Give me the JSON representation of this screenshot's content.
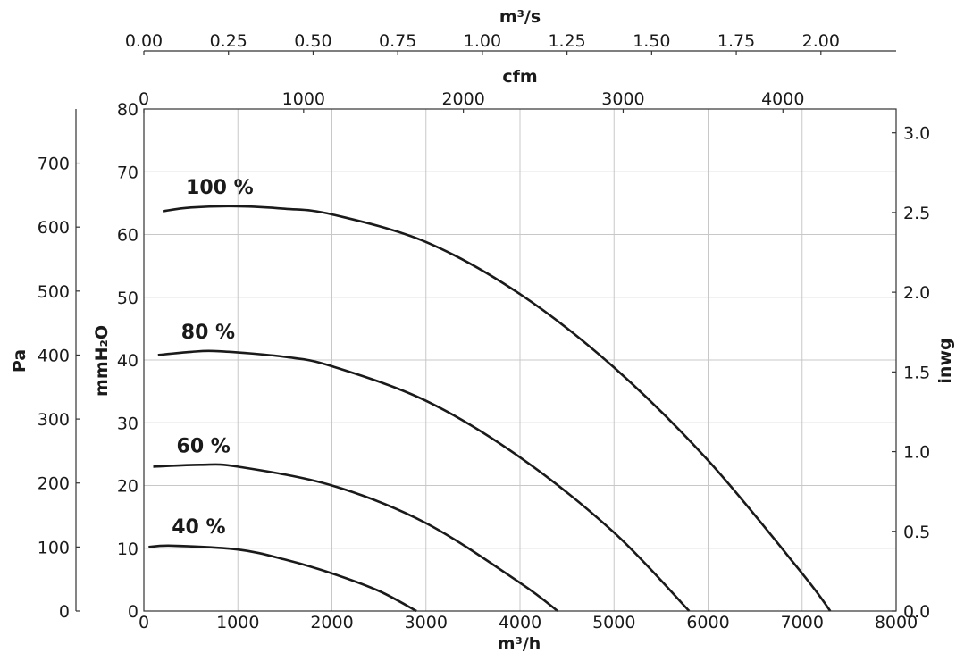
{
  "chart_data": {
    "type": "line",
    "x_axis_bottom": {
      "label": "m³/h",
      "range": [
        0,
        8000
      ],
      "ticks": [
        "0",
        "1000",
        "2000",
        "3000",
        "4000",
        "5000",
        "6000",
        "7000",
        "8000"
      ]
    },
    "x_axis_top_cfm": {
      "label": "cfm",
      "ticks": [
        "0",
        "1000",
        "2000",
        "3000",
        "4000"
      ]
    },
    "x_axis_top_m3s": {
      "label": "m³/s",
      "ticks": [
        "0.00",
        "0.25",
        "0.50",
        "0.75",
        "1.00",
        "1.25",
        "1.50",
        "1.75",
        "2.00"
      ]
    },
    "y_axis_left_mmh2o": {
      "label": "mmH₂O",
      "range": [
        0,
        80
      ],
      "ticks": [
        "0",
        "10",
        "20",
        "30",
        "40",
        "50",
        "60",
        "70",
        "80"
      ]
    },
    "y_axis_left_pa": {
      "label": "Pa",
      "ticks": [
        "0",
        "100",
        "200",
        "300",
        "400",
        "500",
        "600",
        "700"
      ]
    },
    "y_axis_right_inwg": {
      "label": "inwg",
      "ticks": [
        "0.0",
        "0.5",
        "1.0",
        "1.5",
        "2.0",
        "2.5",
        "3.0"
      ]
    },
    "grid": true,
    "series": [
      {
        "name": "100 %",
        "x": [
          200,
          500,
          1000,
          1500,
          2000,
          3000,
          4000,
          5000,
          6000,
          7000,
          7300
        ],
        "y": [
          63.7,
          64.3,
          64.5,
          64.1,
          63.2,
          58.8,
          50.5,
          38.8,
          24.0,
          6.0,
          0
        ]
      },
      {
        "name": "80 %",
        "x": [
          150,
          500,
          800,
          1500,
          2000,
          3000,
          4000,
          5000,
          5800
        ],
        "y": [
          40.8,
          41.3,
          41.4,
          40.5,
          39.0,
          33.5,
          24.5,
          12.5,
          0
        ]
      },
      {
        "name": "60 %",
        "x": [
          100,
          600,
          1000,
          2000,
          3000,
          4000,
          4400
        ],
        "y": [
          23.0,
          23.3,
          23.0,
          20.0,
          14.0,
          4.5,
          0
        ]
      },
      {
        "name": "40 %",
        "x": [
          50,
          300,
          1000,
          1500,
          2000,
          2500,
          2900
        ],
        "y": [
          10.2,
          10.4,
          9.8,
          8.2,
          6.0,
          3.2,
          0
        ]
      }
    ]
  }
}
